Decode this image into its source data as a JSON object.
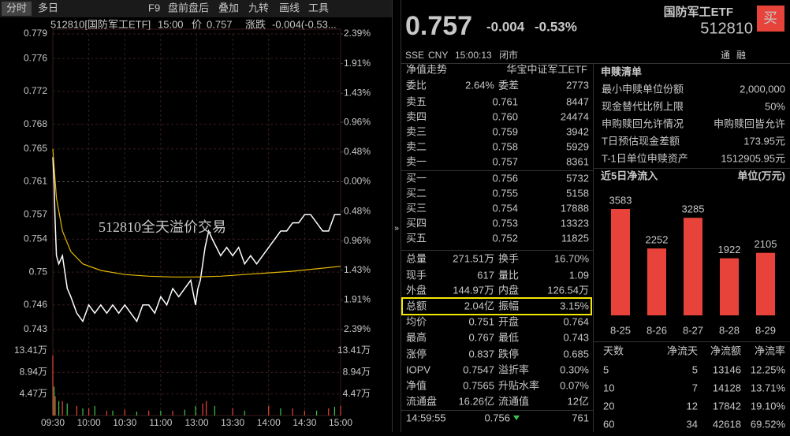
{
  "toolbar": {
    "tabs": [
      "分时",
      "多日",
      "F9",
      "盘前盘后",
      "叠加",
      "九转",
      "画线",
      "工具"
    ]
  },
  "chart_header": {
    "code": "512810[国防军工ETF]",
    "time": "15:00",
    "price_label": "价",
    "price": "0.757",
    "change_label": "涨跌",
    "change": "-0.004(-0.53..."
  },
  "chart_data": [
    {
      "type": "line",
      "annotation": "512810全天溢价交易",
      "xlim": [
        0,
        240
      ],
      "xticks": [
        {
          "value": 0,
          "label": "09:30"
        },
        {
          "value": 30,
          "label": "10:00"
        },
        {
          "value": 60,
          "label": "10:30"
        },
        {
          "value": 90,
          "label": "11:00"
        },
        {
          "value": 120,
          "label": "13:00"
        },
        {
          "value": 150,
          "label": "13:30"
        },
        {
          "value": 180,
          "label": "14:00"
        },
        {
          "value": 210,
          "label": "14:30"
        },
        {
          "value": 240,
          "label": "15:00"
        }
      ],
      "ylim": [
        0.743,
        0.779
      ],
      "yticks": [
        0.779,
        0.776,
        0.772,
        0.768,
        0.765,
        0.761,
        0.757,
        0.754,
        0.75,
        0.746,
        0.743
      ],
      "y2lim": [
        -2.39,
        2.39
      ],
      "y2ticks": [
        {
          "value": 2.39,
          "label": "2.39%"
        },
        {
          "value": 1.91,
          "label": "1.91%"
        },
        {
          "value": 1.43,
          "label": "1.43%"
        },
        {
          "value": 0.96,
          "label": "0.96%"
        },
        {
          "value": 0.48,
          "label": "0.48%"
        },
        {
          "value": 0,
          "label": "0.00%"
        },
        {
          "value": -0.48,
          "label": "0.48%"
        },
        {
          "value": -0.96,
          "label": "0.96%"
        },
        {
          "value": -1.43,
          "label": "1.43%"
        },
        {
          "value": -1.91,
          "label": "1.91%"
        },
        {
          "value": -2.39,
          "label": "2.39%"
        }
      ],
      "grid": true,
      "series": [
        {
          "color": "#ffffff",
          "x": [
            0,
            1,
            2,
            3,
            5,
            8,
            12,
            15,
            20,
            25,
            30,
            35,
            40,
            45,
            50,
            55,
            60,
            65,
            70,
            75,
            80,
            85,
            90,
            95,
            100,
            105,
            110,
            115,
            119,
            121,
            123,
            125,
            127,
            130,
            133,
            140,
            145,
            150,
            155,
            160,
            165,
            170,
            175,
            180,
            185,
            190,
            195,
            200,
            205,
            210,
            215,
            220,
            225,
            230,
            235,
            240
          ],
          "values": [
            0.764,
            0.761,
            0.756,
            0.752,
            0.751,
            0.752,
            0.748,
            0.747,
            0.745,
            0.744,
            0.746,
            0.745,
            0.746,
            0.745,
            0.746,
            0.745,
            0.746,
            0.745,
            0.744,
            0.746,
            0.746,
            0.745,
            0.747,
            0.746,
            0.748,
            0.747,
            0.748,
            0.749,
            0.746,
            0.748,
            0.749,
            0.751,
            0.753,
            0.755,
            0.754,
            0.752,
            0.753,
            0.752,
            0.753,
            0.751,
            0.752,
            0.751,
            0.752,
            0.753,
            0.754,
            0.755,
            0.755,
            0.756,
            0.756,
            0.757,
            0.757,
            0.756,
            0.755,
            0.755,
            0.757,
            0.757
          ]
        },
        {
          "color": "#e6b800",
          "x": [
            0,
            3,
            8,
            15,
            25,
            40,
            60,
            80,
            100,
            120,
            140,
            160,
            180,
            200,
            220,
            240
          ],
          "values": [
            0.765,
            0.759,
            0.755,
            0.7525,
            0.751,
            0.7502,
            0.7497,
            0.7495,
            0.7494,
            0.7494,
            0.7495,
            0.7497,
            0.7499,
            0.7501,
            0.7504,
            0.7507
          ]
        }
      ]
    },
    {
      "type": "bar",
      "xlim": [
        0,
        240
      ],
      "ylim": [
        0,
        13.41
      ],
      "yticks": [
        {
          "value": 13.41,
          "label": "13.41万"
        },
        {
          "value": 8.94,
          "label": "8.94万"
        },
        {
          "value": 4.47,
          "label": "4.47万"
        }
      ],
      "series": [
        {
          "color": "#e8433a",
          "x": [
            0,
            2,
            8,
            20,
            30,
            45,
            60,
            80,
            100,
            125,
            128,
            150,
            180,
            200,
            210,
            230,
            240
          ],
          "values": [
            12.5,
            4,
            3,
            2,
            1.5,
            1,
            1.2,
            1,
            1,
            2.5,
            3,
            1.5,
            2,
            1.5,
            1,
            1.5,
            2
          ]
        },
        {
          "color": "#3cc24f",
          "x": [
            1,
            5,
            12,
            25,
            35,
            50,
            70,
            90,
            110,
            119,
            135,
            160,
            190,
            220,
            235
          ],
          "values": [
            6,
            3,
            2.5,
            1.5,
            2,
            1,
            0.8,
            1,
            1.2,
            2,
            2,
            1,
            1.5,
            1,
            1.8
          ]
        }
      ]
    },
    {
      "type": "bar",
      "title": "近5日净流入",
      "unit": "单位(万元)",
      "color": "#e8433a",
      "categories": [
        "8-25",
        "8-26",
        "8-27",
        "8-28",
        "8-29"
      ],
      "values": [
        3583,
        2252,
        3285,
        1922,
        2105
      ]
    }
  ],
  "quote": {
    "price": "0.757",
    "change": "-0.004",
    "change_pct": "-0.53%",
    "name": "国防军工ETF",
    "code": "512810",
    "buy_button": "买",
    "exchange": "SSE",
    "currency": "CNY",
    "time": "15:00:13",
    "status": "闭市",
    "badges": [
      "通",
      "融"
    ]
  },
  "order_book": {
    "tabs": [
      "净值走势",
      "华宝中证军工ETF"
    ],
    "ratio_label": "委比",
    "ratio": "2.64%",
    "diff_label": "委差",
    "diff": "2773",
    "sells": [
      [
        "卖五",
        "0.761",
        "8447"
      ],
      [
        "卖四",
        "0.760",
        "24474"
      ],
      [
        "卖三",
        "0.759",
        "3942"
      ],
      [
        "卖二",
        "0.758",
        "5929"
      ],
      [
        "卖一",
        "0.757",
        "8361"
      ]
    ],
    "buys": [
      [
        "买一",
        "0.756",
        "5732"
      ],
      [
        "买二",
        "0.755",
        "5158"
      ],
      [
        "买三",
        "0.754",
        "17888"
      ],
      [
        "买四",
        "0.753",
        "13323"
      ],
      [
        "买五",
        "0.752",
        "11825"
      ]
    ]
  },
  "stats": [
    [
      "总量",
      "271.51万",
      "换手",
      "16.70%"
    ],
    [
      "现手",
      "617",
      "量比",
      "1.09"
    ],
    [
      "外盘",
      "144.97万",
      "内盘",
      "126.54万"
    ],
    [
      "总额",
      "2.04亿",
      "振幅",
      "3.15%"
    ],
    [
      "均价",
      "0.751",
      "开盘",
      "0.764"
    ],
    [
      "最高",
      "0.767",
      "最低",
      "0.743"
    ],
    [
      "涨停",
      "0.837",
      "跌停",
      "0.685"
    ],
    [
      "IOPV",
      "0.7547",
      "溢折率",
      "0.30%"
    ],
    [
      "净值",
      "0.7565",
      "升贴水率",
      "0.07%"
    ],
    [
      "流通盘",
      "16.26亿",
      "流通值",
      "12亿"
    ]
  ],
  "trades": [
    [
      "14:59:55",
      "0.756",
      "761"
    ]
  ],
  "creation": {
    "title": "申赎清单",
    "rows": [
      [
        "最小申赎单位份额",
        "2,000,000"
      ],
      [
        "现金替代比例上限",
        "50%"
      ],
      [
        "申购赎回允许情况",
        "申购赎回皆允许"
      ],
      [
        "T日预估现金差额",
        "173.95元"
      ],
      [
        "T-1日单位申赎资产",
        "1512905.95元"
      ]
    ]
  },
  "flow_table": {
    "headers": [
      "天数",
      "净流天",
      "净流额",
      "净流率"
    ],
    "rows": [
      [
        "5",
        "5",
        "13146",
        "12.25%"
      ],
      [
        "10",
        "7",
        "14128",
        "13.71%"
      ],
      [
        "20",
        "12",
        "17842",
        "19.10%"
      ],
      [
        "60",
        "34",
        "42618",
        "69.52%"
      ]
    ]
  }
}
